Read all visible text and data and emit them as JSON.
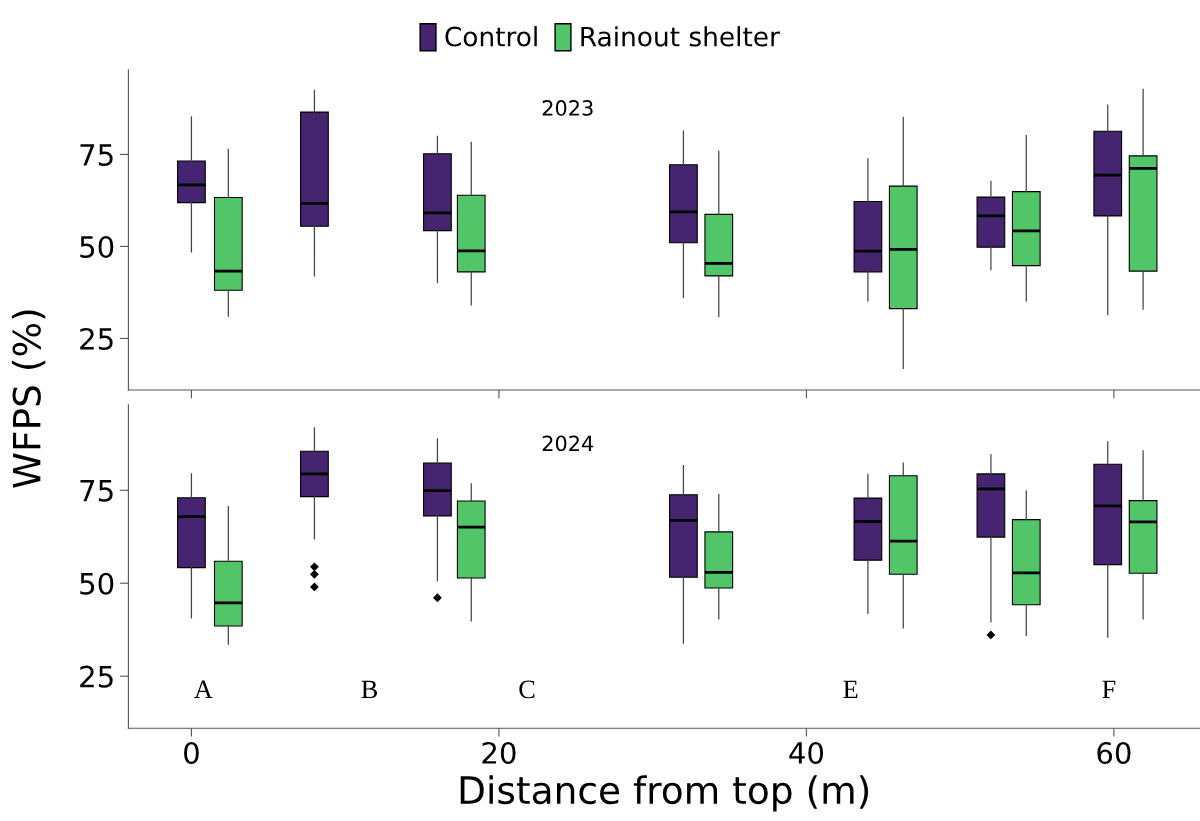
{
  "chart_data": [
    {
      "type": "box",
      "title": "2023",
      "ylabel": "WFPS (%)",
      "legend": "top",
      "xlim": [
        -4.1,
        65.6
      ],
      "xticks": [
        0,
        20,
        40,
        60
      ],
      "ylim": [
        11,
        98
      ],
      "yticks": [
        25,
        50,
        75
      ],
      "tick_labels": "y",
      "grid": false,
      "series": [
        {
          "name": "Control",
          "color": "#45256f",
          "x": [
            0,
            8,
            16,
            32,
            44,
            52,
            59.6
          ],
          "boxes": [
            {
              "low": 48.5,
              "q1": 61.9,
              "median": 66.7,
              "q3": 73.2,
              "high": 85.2
            },
            {
              "low": 42.0,
              "q1": 55.5,
              "median": 61.7,
              "q3": 86.5,
              "high": 92.4
            },
            {
              "low": 40.2,
              "q1": 54.3,
              "median": 59.1,
              "q3": 75.2,
              "high": 79.9
            },
            {
              "low": 36.1,
              "q1": 51.0,
              "median": 59.4,
              "q3": 72.2,
              "high": 81.3
            },
            {
              "low": 35.2,
              "q1": 43.1,
              "median": 48.7,
              "q3": 62.2,
              "high": 73.8
            },
            {
              "low": 43.7,
              "q1": 49.8,
              "median": 58.3,
              "q3": 63.4,
              "high": 67.7
            },
            {
              "low": 31.5,
              "q1": 58.3,
              "median": 69.4,
              "q3": 81.3,
              "high": 88.4
            }
          ]
        },
        {
          "name": "Rainout shelter",
          "color": "#52c569",
          "x": [
            2.4,
            18.2,
            34.3,
            46.3,
            54.3,
            61.9
          ],
          "boxes": [
            {
              "low": 31.1,
              "q1": 38.1,
              "median": 43.3,
              "q3": 63.3,
              "high": 76.4
            },
            {
              "low": 34.1,
              "q1": 43.1,
              "median": 48.8,
              "q3": 63.9,
              "high": 78.3
            },
            {
              "low": 31.0,
              "q1": 42.0,
              "median": 45.4,
              "q3": 58.7,
              "high": 75.8
            },
            {
              "low": 16.9,
              "q1": 33.1,
              "median": 49.2,
              "q3": 66.4,
              "high": 85.1
            },
            {
              "low": 35.2,
              "q1": 44.8,
              "median": 54.2,
              "q3": 64.9,
              "high": 80.1
            },
            {
              "low": 33.0,
              "q1": 43.3,
              "median": 71.2,
              "q3": 74.6,
              "high": 92.7
            }
          ]
        }
      ]
    },
    {
      "type": "box",
      "title": "2024",
      "xlabel": "Distance from top (m)",
      "xlim": [
        -4.1,
        65.6
      ],
      "xticks": [
        0,
        20,
        40,
        60
      ],
      "ylim": [
        11,
        98
      ],
      "yticks": [
        25,
        50,
        75
      ],
      "grid": false,
      "annotations": [
        "A",
        "B",
        "C",
        "E",
        "F"
      ],
      "series": [
        {
          "color": "#45256f",
          "x": [
            0,
            8,
            16,
            32,
            44,
            52,
            59.6
          ],
          "boxes": [
            {
              "low": 40.7,
              "q1": 54.2,
              "median": 67.9,
              "q3": 73.0,
              "high": 79.4
            },
            {
              "low": 61.9,
              "q1": 73.3,
              "median": 79.4,
              "q3": 85.5,
              "high": 91.8,
              "outliers": [
                54.4,
                52.4,
                49.0
              ]
            },
            {
              "low": 50.7,
              "q1": 68.1,
              "median": 74.9,
              "q3": 82.3,
              "high": 88.8,
              "outliers": [
                46.1
              ]
            },
            {
              "low": 33.9,
              "q1": 51.6,
              "median": 66.9,
              "q3": 73.8,
              "high": 81.6
            },
            {
              "low": 41.9,
              "q1": 56.2,
              "median": 66.6,
              "q3": 72.9,
              "high": 79.3
            },
            {
              "low": 39.6,
              "q1": 62.4,
              "median": 75.4,
              "q3": 79.4,
              "high": 84.5,
              "outliers": [
                36.1
              ]
            },
            {
              "low": 35.5,
              "q1": 55.0,
              "median": 70.8,
              "q3": 82.0,
              "high": 88.0
            }
          ]
        },
        {
          "color": "#52c569",
          "x": [
            2.4,
            18.2,
            34.3,
            46.3,
            54.3,
            61.9
          ],
          "boxes": [
            {
              "low": 33.6,
              "q1": 38.5,
              "median": 44.7,
              "q3": 55.9,
              "high": 70.6
            },
            {
              "low": 39.9,
              "q1": 51.4,
              "median": 65.1,
              "q3": 72.1,
              "high": 76.7
            },
            {
              "low": 40.4,
              "q1": 48.7,
              "median": 52.9,
              "q3": 63.8,
              "high": 73.8
            },
            {
              "low": 38.0,
              "q1": 52.4,
              "median": 61.3,
              "q3": 78.9,
              "high": 82.3
            },
            {
              "low": 36.0,
              "q1": 44.2,
              "median": 52.8,
              "q3": 67.1,
              "high": 74.8
            },
            {
              "low": 40.4,
              "q1": 52.7,
              "median": 66.5,
              "q3": 72.2,
              "high": 85.6
            }
          ]
        }
      ]
    }
  ]
}
